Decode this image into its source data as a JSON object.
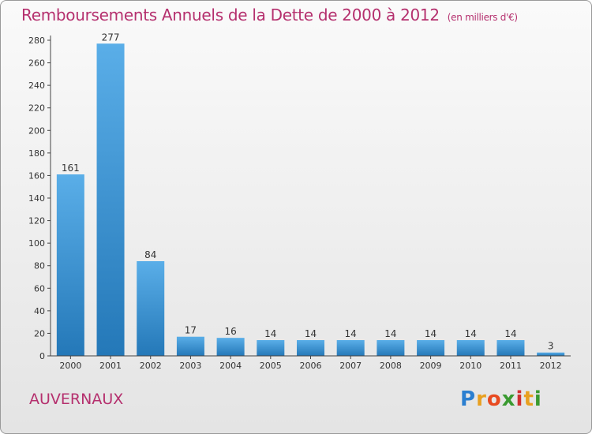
{
  "chart_data": {
    "type": "bar",
    "title": "Remboursements Annuels de la Dette de 2000 à 2012",
    "unit_note": "(en milliers d'€)",
    "categories": [
      "2000",
      "2001",
      "2002",
      "2003",
      "2004",
      "2005",
      "2006",
      "2007",
      "2008",
      "2009",
      "2010",
      "2011",
      "2012"
    ],
    "values": [
      161,
      277,
      84,
      17,
      16,
      14,
      14,
      14,
      14,
      14,
      14,
      14,
      3
    ],
    "value_labels": [
      "161",
      "277",
      "84",
      "17",
      "16",
      "14",
      "14",
      "14",
      "14",
      "14",
      "14",
      "14",
      "3"
    ],
    "ylim": [
      0,
      280
    ],
    "yticks": [
      "0",
      "20",
      "40",
      "60",
      "80",
      "100",
      "120",
      "140",
      "160",
      "180",
      "200",
      "220",
      "240",
      "260",
      "280"
    ],
    "grid": false,
    "bar_color_top": "#5aaee8",
    "bar_color_bottom": "#2478b8"
  },
  "commune": "AUVERNAUX",
  "logo": {
    "letters": [
      "P",
      "r",
      "o",
      "x",
      "i",
      "t",
      "i"
    ],
    "colors": [
      "#2b7fd0",
      "#e8a020",
      "#e84a20",
      "#3a9a30",
      "#d03030",
      "#e8a020",
      "#3a9a30"
    ]
  }
}
